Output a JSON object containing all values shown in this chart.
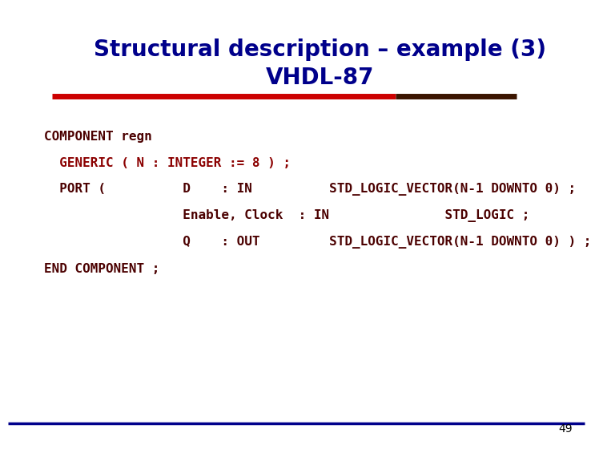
{
  "title_line1": "Structural description – example (3)",
  "title_line2": "VHDL-87",
  "title_color": "#00008B",
  "title_fontsize": 20,
  "bg_color": "#FFFFFF",
  "red_bar_color": "#CC0000",
  "dark_bar_color": "#3B1500",
  "bottom_line_color": "#00008B",
  "page_number": "49",
  "page_number_color": "#000000",
  "code_color_dark": "#4B0000",
  "code_color_red": "#8B0000",
  "code_fontsize": 11.5,
  "lines": [
    "COMPONENT regn",
    "  GENERIC ( N : INTEGER := 8 ) ;",
    "  PORT (          D    : IN          STD_LOGIC_VECTOR(N-1 DOWNTO 0) ;",
    "                  Enable, Clock  : IN               STD_LOGIC ;",
    "                  Q    : OUT         STD_LOGIC_VECTOR(N-1 DOWNTO 0) ) ;",
    "END COMPONENT ;"
  ],
  "line_colors": [
    "dark",
    "red",
    "dark",
    "dark",
    "dark",
    "dark"
  ]
}
